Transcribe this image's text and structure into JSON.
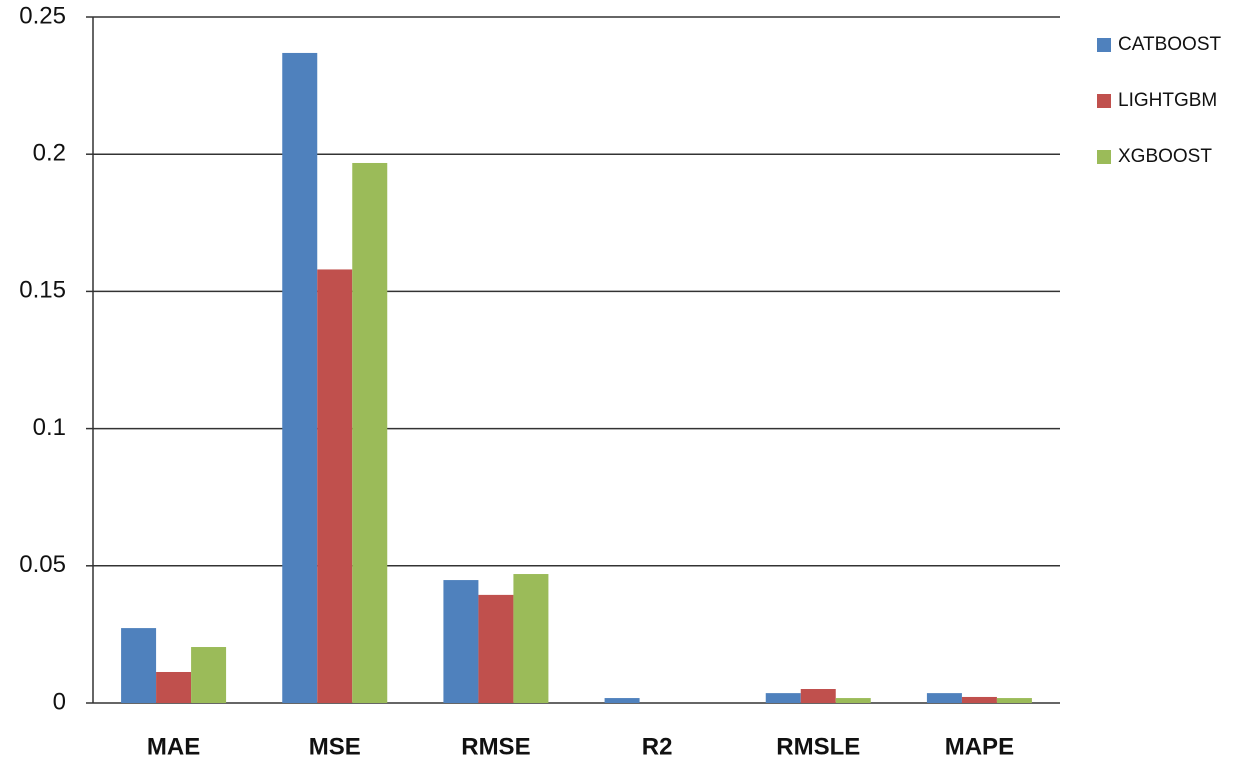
{
  "chart_data": {
    "type": "bar",
    "categories": [
      "MAE",
      "MSE",
      "RMSE",
      "R2",
      "RMSLE",
      "MAPE"
    ],
    "series": [
      {
        "name": "CATBOOST",
        "color": "#4f81bd",
        "values": [
          0.0273,
          0.2369,
          0.0448,
          0.0018,
          0.0036,
          0.0036
        ]
      },
      {
        "name": "LIGHTGBM",
        "color": "#c0504d",
        "values": [
          0.0113,
          0.158,
          0.0394,
          0,
          0.0051,
          0.0022
        ]
      },
      {
        "name": "XGBOOST",
        "color": "#9bbb59",
        "values": [
          0.0204,
          0.1968,
          0.047,
          0,
          0.0018,
          0.0018
        ]
      }
    ],
    "ylim": [
      0,
      0.25
    ],
    "yticks": [
      0,
      0.05,
      0.1,
      0.15,
      0.2,
      0.25
    ],
    "grid": true,
    "legend": "right"
  }
}
